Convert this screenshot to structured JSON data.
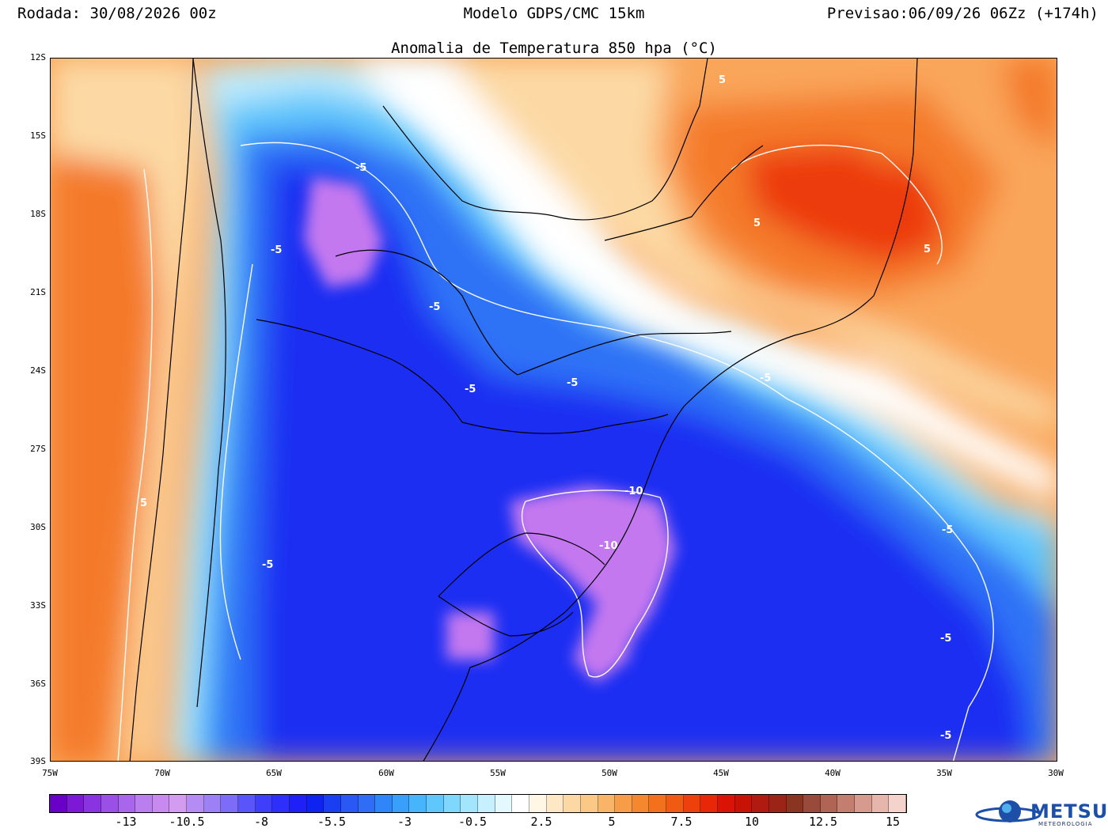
{
  "header": {
    "run": "Rodada: 30/08/2026 00z",
    "model": "Modelo GDPS/CMC 15km",
    "forecast": "Previsao:06/09/26 06Zz (+174h)"
  },
  "map_title": "Anomalia de Temperatura 850 hpa (°C)",
  "lat_labels": [
    "12S",
    "15S",
    "18S",
    "21S",
    "24S",
    "27S",
    "30S",
    "33S",
    "36S",
    "39S"
  ],
  "lon_labels": [
    "75W",
    "70W",
    "65W",
    "60W",
    "55W",
    "50W",
    "45W",
    "40W",
    "35W",
    "30W"
  ],
  "contour_labels": [
    "-5",
    "-5",
    "-5",
    "-5",
    "-5",
    "-5",
    "-5",
    "-5",
    "-5",
    "-5",
    "5",
    "5",
    "5",
    "5",
    "-10",
    "-10"
  ],
  "colorbar": {
    "labels": [
      "-13",
      "-10.5",
      "-8",
      "-5.5",
      "-3",
      "-0.5",
      "2.5",
      "5",
      "7.5",
      "10",
      "12.5",
      "15"
    ],
    "colors": [
      "#6a00c8",
      "#7d19d6",
      "#8a33e0",
      "#9a4fe6",
      "#aa66ea",
      "#bb7eee",
      "#c98af0",
      "#d39cf0",
      "#b48cf4",
      "#9b80f6",
      "#7d6cf8",
      "#5a55fa",
      "#3f3ffb",
      "#2e2ffb",
      "#1f1ff8",
      "#0f23f0",
      "#1a3ff2",
      "#2a58f4",
      "#2f6df6",
      "#2f86f8",
      "#38a0fa",
      "#47b5fb",
      "#5fc7fc",
      "#7fd7fd",
      "#a3e5fd",
      "#c7f0fe",
      "#e3f8ff",
      "#ffffff",
      "#fff6e6",
      "#fde7c4",
      "#fcd9a4",
      "#fbc886",
      "#f9b467",
      "#f79d48",
      "#f5872f",
      "#f3701d",
      "#f15a12",
      "#ee400a",
      "#e82608",
      "#db1206",
      "#c81205",
      "#b01a10",
      "#9b2416",
      "#8a3522",
      "#9a4a3a",
      "#b06454",
      "#c47e70",
      "#d69a8e",
      "#e6b6ad",
      "#f4d3cd"
    ]
  },
  "logo": {
    "name": "METSUL",
    "subtitle": "METEOROLOGIA",
    "accent": "#1d4fa8"
  },
  "palette": {
    "purple": "#c478ef",
    "deep_blue": "#1f2ef2",
    "blue": "#2f72f6",
    "light_blue": "#5ec6fb",
    "pale_blue": "#bdebfd",
    "white": "#ffffff",
    "pale_orange": "#fcd9a4",
    "orange": "#f9a65a",
    "dark_orange": "#f47a2a",
    "red": "#ec3a10"
  }
}
